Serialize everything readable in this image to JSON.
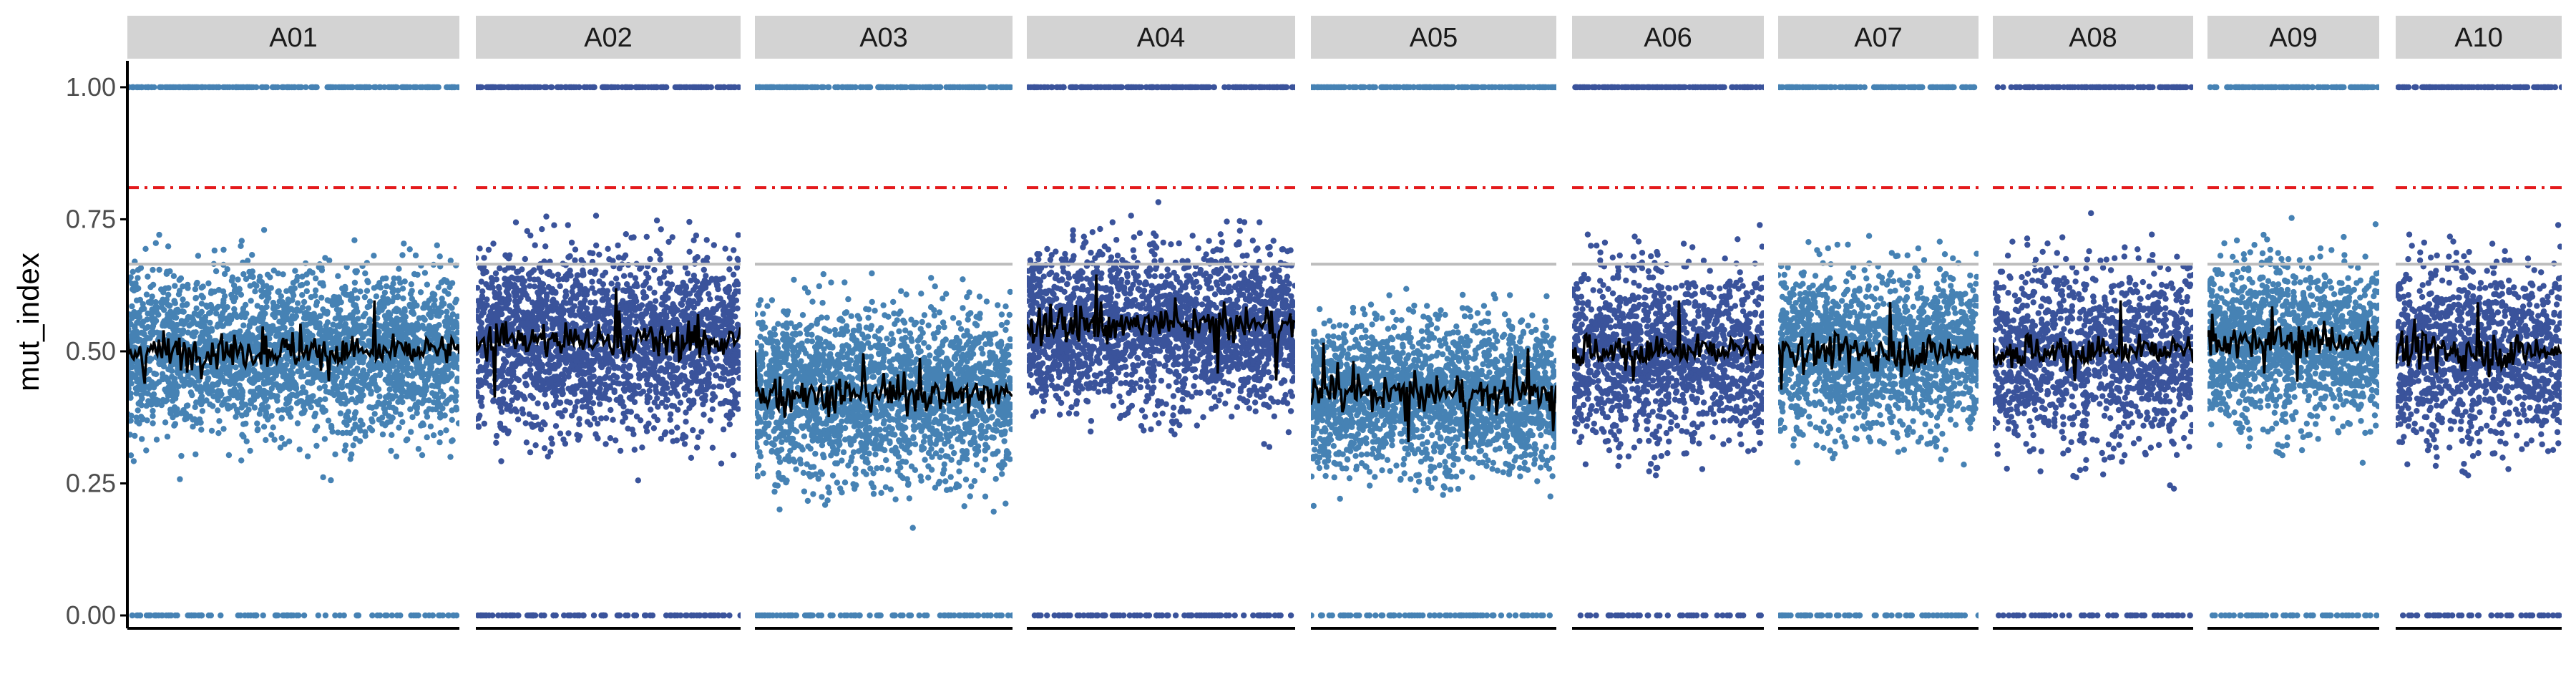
{
  "chart_data": {
    "type": "scatter",
    "facet_by": "chromosome",
    "title": "",
    "xlabel": "",
    "ylabel": "mut_index",
    "ylim": [
      0,
      1.05
    ],
    "yticks": [
      0,
      0.25,
      0.5,
      0.75,
      1.0
    ],
    "ytick_labels": [
      "0.00",
      "0.25",
      "0.50",
      "0.75",
      "1.00"
    ],
    "grid": false,
    "legend": "none",
    "reference_lines": [
      {
        "y": 0.81,
        "style": "dashed",
        "color": "#e41a1c"
      },
      {
        "y": 0.665,
        "style": "solid",
        "color": "#bdbdbd"
      }
    ],
    "facets": [
      {
        "name": "A01",
        "point_color": "#4682b4",
        "mean": 0.5,
        "jitter": 0.24,
        "density": 1.0
      },
      {
        "name": "A02",
        "point_color": "#3a539b",
        "mean": 0.52,
        "jitter": 0.26,
        "density": 1.0
      },
      {
        "name": "A03",
        "point_color": "#4682b4",
        "mean": 0.42,
        "jitter": 0.25,
        "density": 1.0
      },
      {
        "name": "A04",
        "point_color": "#3a539b",
        "mean": 0.55,
        "jitter": 0.24,
        "density": 1.0
      },
      {
        "name": "A05",
        "point_color": "#4682b4",
        "mean": 0.42,
        "jitter": 0.23,
        "density": 1.0
      },
      {
        "name": "A06",
        "point_color": "#3a539b",
        "mean": 0.5,
        "jitter": 0.26,
        "density": 0.9
      },
      {
        "name": "A07",
        "point_color": "#4682b4",
        "mean": 0.5,
        "jitter": 0.24,
        "density": 1.0
      },
      {
        "name": "A08",
        "point_color": "#3a539b",
        "mean": 0.5,
        "jitter": 0.27,
        "density": 0.8
      },
      {
        "name": "A09",
        "point_color": "#4682b4",
        "mean": 0.52,
        "jitter": 0.24,
        "density": 1.0
      },
      {
        "name": "A10",
        "point_color": "#3a539b",
        "mean": 0.5,
        "jitter": 0.26,
        "density": 0.9
      }
    ],
    "trend_line_color": "#000000"
  },
  "colors": {
    "strip_background": "#d3d3d3",
    "axis_line": "#000000",
    "tick_text": "#4d4d4d"
  }
}
